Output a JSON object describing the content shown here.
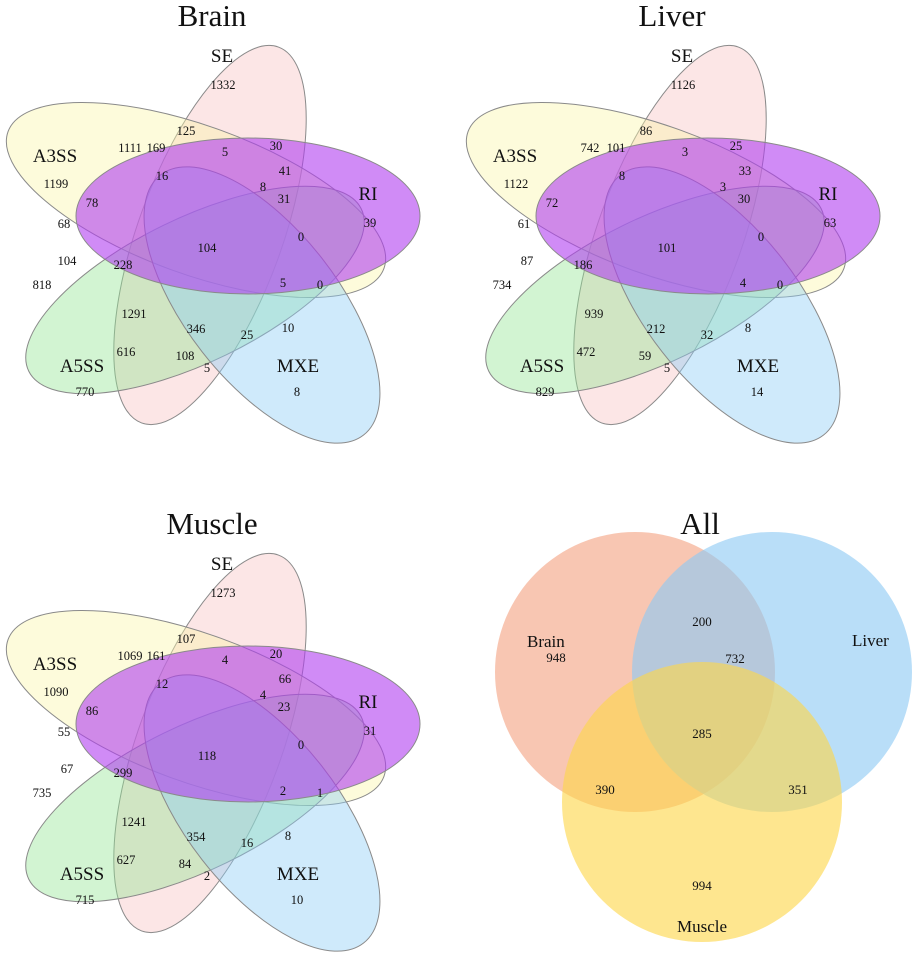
{
  "venn5": [
    {
      "key": "brain",
      "title": "Brain",
      "sets": [
        {
          "id": "SE",
          "label": "SE",
          "only": "1332",
          "color": "#f8c3c3"
        },
        {
          "id": "A3SS",
          "label": "A3SS",
          "only": "1199",
          "color": "#fbf6a9"
        },
        {
          "id": "RI",
          "label": "RI",
          "only": "39",
          "color": "#b13df0"
        },
        {
          "id": "A5SS",
          "label": "A5SS",
          "only": "770",
          "color": "#94e494"
        },
        {
          "id": "MXE",
          "label": "MXE",
          "only": "8",
          "color": "#8ccdf5"
        }
      ],
      "regions": [
        "125",
        "1111",
        "169",
        "5",
        "30",
        "16",
        "41",
        "8",
        "78",
        "31",
        "104",
        "68",
        "0",
        "104",
        "228",
        "5",
        "0",
        "818",
        "1291",
        "346",
        "25",
        "10",
        "616",
        "108",
        "5"
      ]
    },
    {
      "key": "liver",
      "title": "Liver",
      "sets": [
        {
          "id": "SE",
          "label": "SE",
          "only": "1126",
          "color": "#f8c3c3"
        },
        {
          "id": "A3SS",
          "label": "A3SS",
          "only": "1122",
          "color": "#fbf6a9"
        },
        {
          "id": "RI",
          "label": "RI",
          "only": "63",
          "color": "#b13df0"
        },
        {
          "id": "A5SS",
          "label": "A5SS",
          "only": "829",
          "color": "#94e494"
        },
        {
          "id": "MXE",
          "label": "MXE",
          "only": "14",
          "color": "#8ccdf5"
        }
      ],
      "regions": [
        "86",
        "742",
        "101",
        "3",
        "25",
        "8",
        "33",
        "3",
        "72",
        "30",
        "101",
        "61",
        "0",
        "87",
        "186",
        "4",
        "0",
        "734",
        "939",
        "212",
        "32",
        "8",
        "472",
        "59",
        "5"
      ]
    },
    {
      "key": "muscle",
      "title": "Muscle",
      "sets": [
        {
          "id": "SE",
          "label": "SE",
          "only": "1273",
          "color": "#f8c3c3"
        },
        {
          "id": "A3SS",
          "label": "A3SS",
          "only": "1090",
          "color": "#fbf6a9"
        },
        {
          "id": "RI",
          "label": "RI",
          "only": "31",
          "color": "#b13df0"
        },
        {
          "id": "A5SS",
          "label": "A5SS",
          "only": "715",
          "color": "#94e494"
        },
        {
          "id": "MXE",
          "label": "MXE",
          "only": "10",
          "color": "#8ccdf5"
        }
      ],
      "regions": [
        "107",
        "1069",
        "161",
        "4",
        "20",
        "12",
        "66",
        "4",
        "86",
        "23",
        "118",
        "55",
        "0",
        "67",
        "299",
        "2",
        "1",
        "735",
        "1241",
        "354",
        "16",
        "8",
        "627",
        "84",
        "2"
      ]
    }
  ],
  "all": {
    "title": "All",
    "sets": [
      {
        "id": "brain",
        "label": "Brain",
        "label_color": "#8b1a1a",
        "fill": "#f4a383"
      },
      {
        "id": "liver",
        "label": "Liver",
        "label_color": "#1f2a7a",
        "fill": "#8ec9f4"
      },
      {
        "id": "muscle",
        "label": "Muscle",
        "label_color": "#8a6a10",
        "fill": "#fdd64a"
      }
    ],
    "regions": {
      "brain_only": "948",
      "liver_only": "732",
      "muscle_only": "994",
      "brain_liver": "200",
      "brain_muscle": "390",
      "liver_muscle": "351",
      "all_three": "285"
    }
  }
}
